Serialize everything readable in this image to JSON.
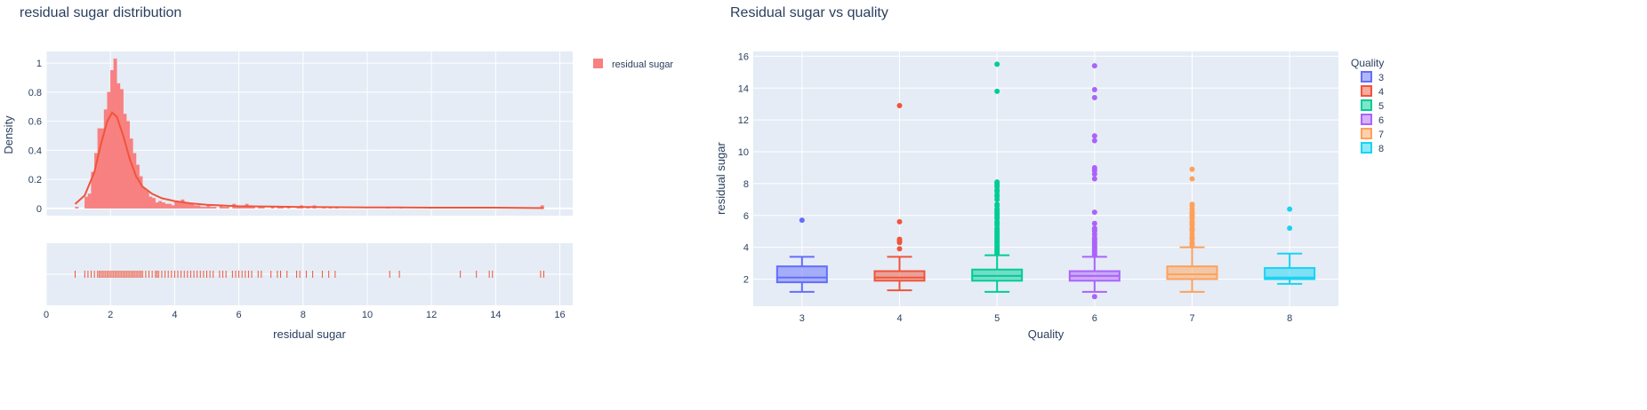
{
  "colors": {
    "plot_bg": "#e5ecf6",
    "grid": "#ffffff",
    "hist": "#f88080",
    "kde": "#ef553b",
    "box": [
      "#636efa",
      "#ef553b",
      "#00cc96",
      "#ab63fa",
      "#ffa15a",
      "#19d3f3"
    ]
  },
  "chart_data": [
    {
      "type": "bar",
      "title": "residual sugar distribution",
      "xlabel": "residual sugar",
      "ylabel": "Density",
      "xlim": [
        0,
        16.4
      ],
      "ylim": [
        -0.05,
        1.08
      ],
      "x_ticks": [
        "0",
        "2",
        "4",
        "6",
        "8",
        "10",
        "12",
        "14",
        "16"
      ],
      "y_ticks": [
        "0",
        "0.2",
        "0.4",
        "0.6",
        "0.8",
        "1"
      ],
      "legend": {
        "label": "residual sugar",
        "position": "right"
      },
      "bin_width": 0.1,
      "bins_x": [
        0.9,
        1.2,
        1.3,
        1.4,
        1.5,
        1.6,
        1.7,
        1.8,
        1.9,
        2.0,
        2.1,
        2.2,
        2.3,
        2.4,
        2.5,
        2.6,
        2.7,
        2.8,
        2.9,
        3.0,
        3.1,
        3.2,
        3.3,
        3.4,
        3.5,
        3.6,
        3.7,
        3.8,
        3.9,
        4.0,
        4.1,
        4.2,
        4.3,
        4.4,
        4.5,
        4.6,
        4.7,
        4.8,
        4.9,
        5.0,
        5.1,
        5.2,
        5.4,
        5.5,
        5.6,
        5.8,
        5.9,
        6.0,
        6.1,
        6.2,
        6.3,
        6.4,
        6.6,
        6.7,
        7.0,
        7.2,
        7.3,
        7.5,
        7.8,
        7.9,
        8.1,
        8.3,
        8.6,
        8.8,
        9.0,
        10.6,
        11.0,
        12.9,
        13.4,
        13.8,
        15.4
      ],
      "bins_y": [
        0.01,
        0.08,
        0.1,
        0.25,
        0.38,
        0.55,
        0.55,
        0.68,
        0.8,
        0.95,
        1.03,
        0.86,
        0.82,
        0.65,
        0.6,
        0.48,
        0.38,
        0.3,
        0.22,
        0.14,
        0.12,
        0.08,
        0.07,
        0.04,
        0.05,
        0.04,
        0.03,
        0.03,
        0.02,
        0.05,
        0.04,
        0.06,
        0.04,
        0.03,
        0.03,
        0.02,
        0.02,
        0.01,
        0.01,
        0.02,
        0.01,
        0.01,
        0.02,
        0.01,
        0.01,
        0.03,
        0.01,
        0.01,
        0.02,
        0.03,
        0.02,
        0.01,
        0.01,
        0.01,
        0.01,
        0.01,
        0.01,
        0.01,
        0.01,
        0.02,
        0.01,
        0.02,
        0.01,
        0.01,
        0.01,
        0.01,
        0.01,
        0.01,
        0.01,
        0.01,
        0.02
      ],
      "kde_x": [
        0.9,
        1.2,
        1.5,
        1.7,
        1.9,
        2.05,
        2.2,
        2.4,
        2.6,
        2.8,
        3.0,
        3.3,
        3.6,
        4.0,
        4.5,
        5.0,
        6.0,
        7.0,
        8.0,
        9.0,
        10.0,
        11.0,
        12.0,
        13.0,
        14.0,
        15.5
      ],
      "kde_y": [
        0.03,
        0.09,
        0.25,
        0.44,
        0.6,
        0.66,
        0.63,
        0.5,
        0.34,
        0.22,
        0.15,
        0.1,
        0.07,
        0.05,
        0.035,
        0.025,
        0.015,
        0.012,
        0.01,
        0.008,
        0.006,
        0.006,
        0.005,
        0.005,
        0.005,
        0.002
      ],
      "rug_x": [
        0.9,
        1.2,
        1.3,
        1.4,
        1.5,
        1.6,
        1.65,
        1.7,
        1.75,
        1.8,
        1.85,
        1.9,
        1.95,
        2.0,
        2.05,
        2.1,
        2.15,
        2.2,
        2.25,
        2.3,
        2.35,
        2.4,
        2.45,
        2.5,
        2.55,
        2.6,
        2.65,
        2.7,
        2.75,
        2.8,
        2.85,
        2.9,
        2.95,
        3.0,
        3.1,
        3.2,
        3.3,
        3.4,
        3.45,
        3.5,
        3.6,
        3.7,
        3.8,
        3.9,
        4.0,
        4.1,
        4.2,
        4.3,
        4.4,
        4.5,
        4.6,
        4.7,
        4.8,
        4.9,
        5.0,
        5.1,
        5.2,
        5.4,
        5.5,
        5.6,
        5.8,
        5.9,
        6.0,
        6.1,
        6.2,
        6.3,
        6.4,
        6.6,
        6.7,
        7.0,
        7.2,
        7.3,
        7.5,
        7.8,
        7.9,
        8.1,
        8.3,
        8.6,
        8.8,
        9.0,
        10.7,
        11.0,
        12.9,
        13.4,
        13.8,
        13.9,
        15.4,
        15.5
      ]
    },
    {
      "type": "box",
      "title": "Residual sugar vs quality",
      "xlabel": "Quality",
      "ylabel": "residual sugar",
      "ylim": [
        0.3,
        16.3
      ],
      "x_ticks": [
        "3",
        "4",
        "5",
        "6",
        "7",
        "8"
      ],
      "y_ticks": [
        "2",
        "4",
        "6",
        "8",
        "10",
        "12",
        "14",
        "16"
      ],
      "legend": {
        "title": "Quality",
        "labels": [
          "3",
          "4",
          "5",
          "6",
          "7",
          "8"
        ],
        "position": "right"
      },
      "series": [
        {
          "name": "3",
          "q1": 1.8,
          "median": 2.1,
          "q3": 2.8,
          "lower": 1.2,
          "upper": 3.4,
          "outliers": [
            5.7
          ]
        },
        {
          "name": "4",
          "q1": 1.9,
          "median": 2.1,
          "q3": 2.5,
          "lower": 1.3,
          "upper": 3.4,
          "outliers": [
            3.9,
            4.3,
            4.4,
            4.5,
            5.6,
            12.9
          ]
        },
        {
          "name": "5",
          "q1": 1.9,
          "median": 2.2,
          "q3": 2.6,
          "lower": 1.2,
          "upper": 3.5,
          "outliers": [
            3.6,
            3.7,
            3.8,
            3.9,
            4.0,
            4.1,
            4.2,
            4.3,
            4.4,
            4.5,
            4.6,
            4.7,
            4.8,
            4.9,
            5.0,
            5.1,
            5.2,
            5.4,
            5.5,
            5.6,
            5.8,
            5.9,
            6.0,
            6.1,
            6.2,
            6.3,
            6.4,
            6.6,
            6.7,
            7.0,
            7.2,
            7.3,
            7.5,
            7.6,
            7.8,
            7.9,
            8.0,
            8.1,
            13.8,
            15.5
          ]
        },
        {
          "name": "6",
          "q1": 1.9,
          "median": 2.2,
          "q3": 2.5,
          "lower": 1.2,
          "upper": 3.4,
          "outliers": [
            0.9,
            3.5,
            3.6,
            3.7,
            3.8,
            3.9,
            4.0,
            4.1,
            4.2,
            4.3,
            4.4,
            4.5,
            4.6,
            4.8,
            5.0,
            5.1,
            5.2,
            5.5,
            6.2,
            8.3,
            8.6,
            8.8,
            8.9,
            9.0,
            10.7,
            11.0,
            13.4,
            13.9,
            15.4
          ]
        },
        {
          "name": "7",
          "q1": 2.0,
          "median": 2.3,
          "q3": 2.8,
          "lower": 1.2,
          "upper": 4.0,
          "outliers": [
            4.1,
            4.2,
            4.3,
            4.5,
            4.6,
            4.8,
            5.0,
            5.1,
            5.2,
            5.4,
            5.5,
            5.6,
            5.8,
            5.9,
            6.0,
            6.1,
            6.2,
            6.4,
            6.6,
            6.7,
            8.3,
            8.9
          ]
        },
        {
          "name": "8",
          "q1": 2.0,
          "median": 2.1,
          "q3": 2.7,
          "lower": 1.7,
          "upper": 3.6,
          "outliers": [
            5.2,
            6.4
          ]
        }
      ]
    }
  ]
}
